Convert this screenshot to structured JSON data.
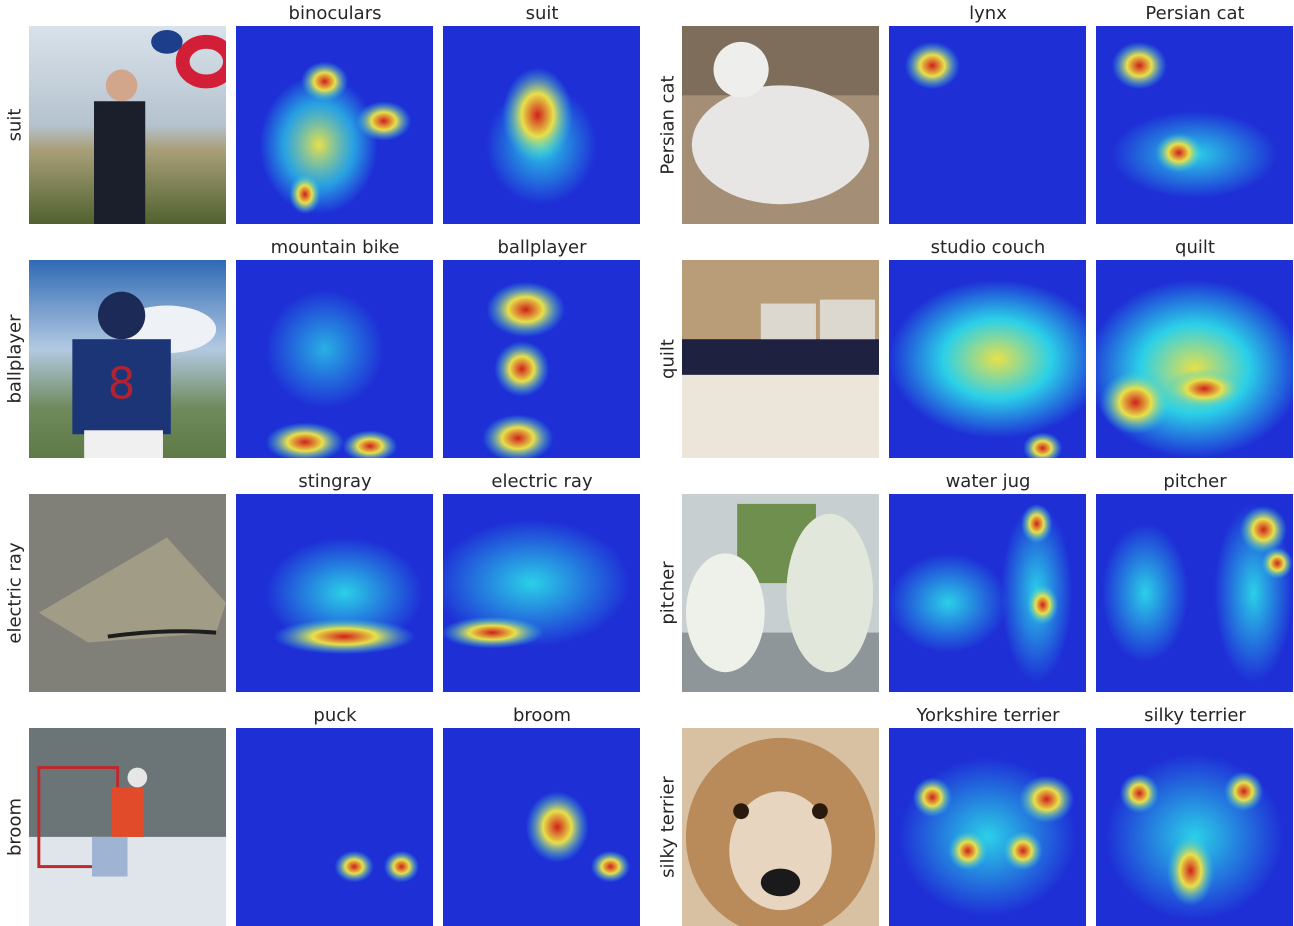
{
  "panels": [
    {
      "row_label": "suit",
      "titles": [
        "binoculars",
        "suit"
      ],
      "photo_colors": [
        "#b7c7d6",
        "#6f7a4e"
      ]
    },
    {
      "row_label": "ballplayer",
      "titles": [
        "mountain bike",
        "ballplayer"
      ],
      "photo_colors": [
        "#5a86c0",
        "#3d5f92"
      ]
    },
    {
      "row_label": "electric ray",
      "titles": [
        "stingray",
        "electric ray"
      ],
      "photo_colors": [
        "#8a8a84",
        "#6d6c66"
      ]
    },
    {
      "row_label": "broom",
      "titles": [
        "puck",
        "broom"
      ],
      "photo_colors": [
        "#5e6a6e",
        "#c8d0d8"
      ]
    },
    {
      "row_label": "Persian cat",
      "titles": [
        "lynx",
        "Persian cat"
      ],
      "photo_colors": [
        "#a48f76",
        "#e4e2e0"
      ]
    },
    {
      "row_label": "quilt",
      "titles": [
        "studio couch",
        "quilt"
      ],
      "photo_colors": [
        "#b89d78",
        "#e8e2d8"
      ]
    },
    {
      "row_label": "pitcher",
      "titles": [
        "water jug",
        "pitcher"
      ],
      "photo_colors": [
        "#c7cfd1",
        "#7c8a84"
      ]
    },
    {
      "row_label": "silky terrier",
      "titles": [
        "Yorkshire terrier",
        "silky terrier"
      ],
      "photo_colors": [
        "#b98a5a",
        "#e7d5bf"
      ]
    }
  ],
  "heatmap_colors": [
    "#1e2fd6",
    "#2bd0e8",
    "#e8e04a",
    "#d0201a"
  ]
}
